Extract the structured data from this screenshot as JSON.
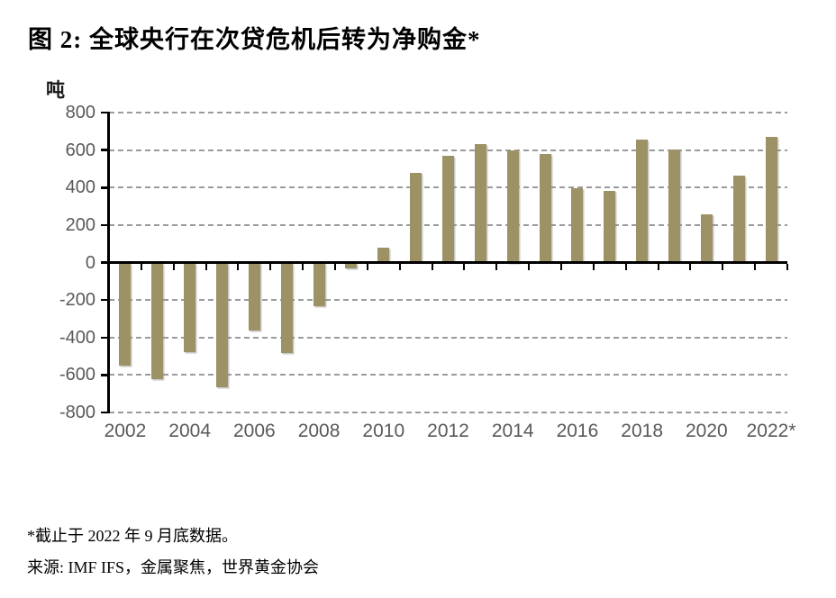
{
  "figure": {
    "title": "图 2: 全球央行在次贷危机后转为净购金*",
    "footnote1": "*截止于 2022 年 9 月底数据。",
    "footnote2": "来源: IMF IFS，金属聚焦，世界黄金协会"
  },
  "chart_data": {
    "type": "bar",
    "title": "图 2: 全球央行在次贷危机后转为净购金*",
    "unit_label": "吨",
    "categories": [
      "2002",
      "2003",
      "2004",
      "2005",
      "2006",
      "2007",
      "2008",
      "2009",
      "2010",
      "2011",
      "2012",
      "2013",
      "2014",
      "2015",
      "2016",
      "2017",
      "2018",
      "2019",
      "2020",
      "2021",
      "2022"
    ],
    "values": [
      -550,
      -620,
      -480,
      -665,
      -365,
      -485,
      -235,
      -30,
      80,
      480,
      570,
      630,
      600,
      580,
      395,
      380,
      655,
      605,
      255,
      465,
      670
    ],
    "x_tick_labels": [
      "2002",
      "2004",
      "2006",
      "2008",
      "2010",
      "2012",
      "2014",
      "2016",
      "2018",
      "2020",
      "2022*"
    ],
    "y_ticks": [
      -800,
      -600,
      -400,
      -200,
      0,
      200,
      400,
      600,
      800
    ],
    "y_tick_labels": [
      "-800",
      "-600",
      "-400",
      "-200",
      "0",
      "200",
      "400",
      "600",
      "800"
    ],
    "ylim": [
      -800,
      800
    ],
    "xlabel": "",
    "ylabel": "吨",
    "grid": "horizontal-dashed",
    "legend": "none",
    "bar_color": "#9d9266",
    "gridline_color": "#9b9b9b",
    "axis_color": "#000000",
    "tick_label_color": "#595959",
    "footnotes": [
      "*截止于 2022 年 9 月底数据。",
      "来源: IMF IFS，金属聚焦，世界黄金协会"
    ]
  }
}
